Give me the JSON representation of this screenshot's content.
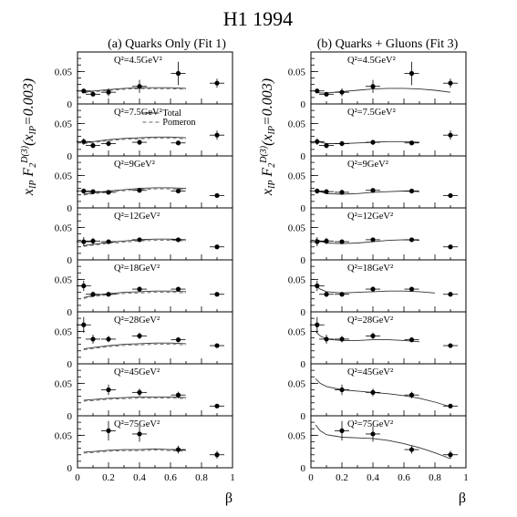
{
  "title": "H1 1994",
  "xlabel": "β",
  "panel_titles": [
    "(a) Quarks Only (Fit 1)",
    "(b) Quarks + Gluons (Fit 3)"
  ],
  "legend": {
    "total": "Total",
    "pomeron": "Pomeron"
  },
  "chart_data": {
    "type": "scatter",
    "title": "H1 1994",
    "xlabel": "β",
    "ylabel": "x_IP F_2^D(3)(x_IP=0.003)",
    "xlim": [
      0,
      1
    ],
    "ylim": [
      0,
      0.08
    ],
    "x_ticks": [
      "0",
      "0.2",
      "0.4",
      "0.6",
      "0.8",
      "1"
    ],
    "y_ticks": [
      "0",
      "0.05"
    ],
    "beta": [
      0.04,
      0.1,
      0.2,
      0.4,
      0.65,
      0.9
    ],
    "bins": [
      {
        "label": "Q²=4.5GeV²",
        "q2": "4.5",
        "y": [
          0.02,
          0.015,
          0.018,
          0.027,
          0.047,
          0.032
        ],
        "err": [
          0.003,
          0.003,
          0.006,
          0.01,
          0.018,
          0.007
        ]
      },
      {
        "label": "Q²=7.5GeV²",
        "q2": "7.5",
        "y": [
          0.022,
          0.016,
          0.019,
          0.021,
          0.02,
          0.032
        ],
        "err": [
          0.005,
          0.004,
          0.004,
          0.004,
          0.003,
          0.007
        ]
      },
      {
        "label": "Q²=9GeV²",
        "q2": "9",
        "y": [
          0.026,
          0.025,
          0.024,
          0.027,
          0.026,
          0.019
        ],
        "err": [
          0.004,
          0.004,
          0.003,
          0.003,
          0.003,
          0.003
        ]
      },
      {
        "label": "Q²=12GeV²",
        "q2": "12",
        "y": [
          0.028,
          0.029,
          0.028,
          0.031,
          0.031,
          0.02
        ],
        "err": [
          0.007,
          0.005,
          0.003,
          0.003,
          0.003,
          0.003
        ]
      },
      {
        "label": "Q²=18GeV²",
        "q2": "18",
        "y": [
          0.04,
          0.027,
          0.027,
          0.035,
          0.035,
          0.027
        ],
        "err": [
          0.008,
          0.004,
          0.003,
          0.004,
          0.003,
          0.003
        ]
      },
      {
        "label": "Q²=28GeV²",
        "q2": "28",
        "y": [
          0.06,
          0.038,
          0.038,
          0.043,
          0.037,
          0.028
        ],
        "err": [
          0.012,
          0.007,
          0.005,
          0.005,
          0.004,
          0.003
        ]
      },
      {
        "label": "Q²=45GeV²",
        "q2": "45",
        "y": [
          0.0,
          0.0,
          0.04,
          0.036,
          0.032,
          0.015
        ],
        "err": [
          0,
          0,
          0.008,
          0.006,
          0.005,
          0.003
        ]
      },
      {
        "label": "Q²=75GeV²",
        "q2": "75",
        "y": [
          0.0,
          0.0,
          0.057,
          0.052,
          0.028,
          0.02
        ],
        "err": [
          0,
          0,
          0.015,
          0.012,
          0.006,
          0.006
        ]
      }
    ],
    "fits": {
      "fit1": {
        "beta": [
          0.04,
          0.1,
          0.2,
          0.3,
          0.4,
          0.5,
          0.6,
          0.7
        ],
        "total": [
          [
            0.018,
            0.02,
            0.022,
            0.024,
            0.025,
            0.025,
            0.025,
            0.024
          ],
          [
            0.02,
            0.022,
            0.025,
            0.027,
            0.028,
            0.029,
            0.029,
            0.028
          ],
          [
            0.021,
            0.023,
            0.026,
            0.028,
            0.03,
            0.031,
            0.031,
            0.03
          ],
          [
            0.022,
            0.024,
            0.027,
            0.029,
            0.031,
            0.032,
            0.032,
            0.031
          ],
          [
            0.022,
            0.025,
            0.028,
            0.03,
            0.031,
            0.032,
            0.032,
            0.031
          ],
          [
            0.023,
            0.025,
            0.028,
            0.03,
            0.031,
            0.032,
            0.032,
            0.031
          ],
          [
            0.024,
            0.025,
            0.027,
            0.028,
            0.029,
            0.029,
            0.029,
            0.028
          ],
          [
            0.024,
            0.025,
            0.027,
            0.028,
            0.028,
            0.029,
            0.028,
            0.027
          ]
        ]
      },
      "fit3": {
        "beta": [
          0.03,
          0.06,
          0.1,
          0.2,
          0.3,
          0.4,
          0.5,
          0.6,
          0.7,
          0.8,
          0.9
        ],
        "total": [
          [
            0.018,
            0.017,
            0.017,
            0.019,
            0.021,
            0.023,
            0.024,
            0.024,
            0.023,
            0.021,
            0.018
          ],
          [
            0.023,
            0.021,
            0.019,
            0.019,
            0.02,
            0.021,
            0.022,
            0.022,
            0.021,
            0.0,
            0.0
          ],
          [
            0.028,
            0.025,
            0.022,
            0.021,
            0.022,
            0.024,
            0.025,
            0.026,
            0.025,
            0.0,
            0.0
          ],
          [
            0.032,
            0.029,
            0.026,
            0.025,
            0.026,
            0.028,
            0.03,
            0.031,
            0.03,
            0.0,
            0.0
          ],
          [
            0.04,
            0.035,
            0.031,
            0.029,
            0.03,
            0.031,
            0.032,
            0.032,
            0.031,
            0.029,
            0.0
          ],
          [
            0.05,
            0.043,
            0.038,
            0.036,
            0.036,
            0.037,
            0.037,
            0.036,
            0.034,
            0.0,
            0.0
          ],
          [
            0.057,
            0.05,
            0.045,
            0.04,
            0.038,
            0.036,
            0.034,
            0.031,
            0.027,
            0.021,
            0.014
          ],
          [
            0.066,
            0.057,
            0.051,
            0.047,
            0.046,
            0.045,
            0.042,
            0.037,
            0.031,
            0.023,
            0.014
          ]
        ]
      }
    }
  }
}
